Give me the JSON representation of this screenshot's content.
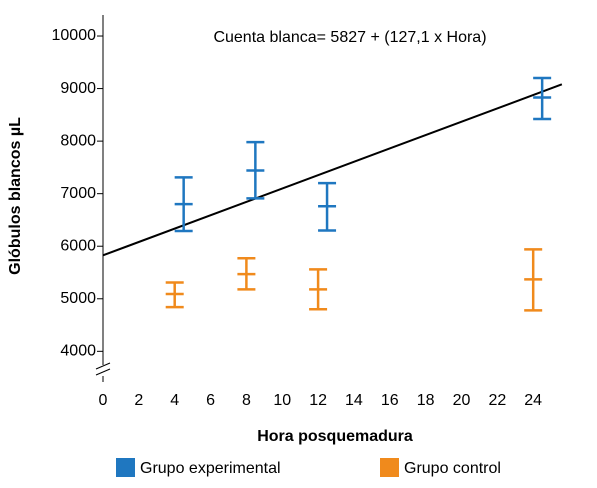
{
  "chart_data": {
    "type": "errorbar",
    "annotation": "Cuenta blanca= 5827 + (127,1 x Hora)",
    "x_label": "Hora posquemadura",
    "y_label": "Glóbulos blancos µL",
    "xlim": [
      0,
      26.5
    ],
    "xticks": [
      0,
      2,
      4,
      6,
      8,
      10,
      12,
      14,
      16,
      18,
      20,
      22,
      24
    ],
    "ylim": [
      3500,
      10400
    ],
    "yticks": [
      4000,
      5000,
      6000,
      7000,
      8000,
      9000,
      10000
    ],
    "series": [
      {
        "name": "Grupo experimental",
        "color": "#1f77c0",
        "x": [
          4.5,
          8.5,
          12.5,
          24.5
        ],
        "values": [
          6800,
          7440,
          6760,
          8830
        ],
        "low": [
          6290,
          6910,
          6300,
          8420
        ],
        "high": [
          7310,
          7980,
          7200,
          9200
        ]
      },
      {
        "name": "Grupo control",
        "color": "#f08a1c",
        "x": [
          4,
          8,
          12,
          24
        ],
        "values": [
          5090,
          5470,
          5180,
          5370
        ],
        "low": [
          4840,
          5180,
          4800,
          4780
        ],
        "high": [
          5310,
          5770,
          5560,
          5940
        ]
      }
    ],
    "trend_line": {
      "x": [
        0,
        25.6
      ],
      "values": [
        5827,
        9081
      ],
      "color": "#000000"
    }
  }
}
